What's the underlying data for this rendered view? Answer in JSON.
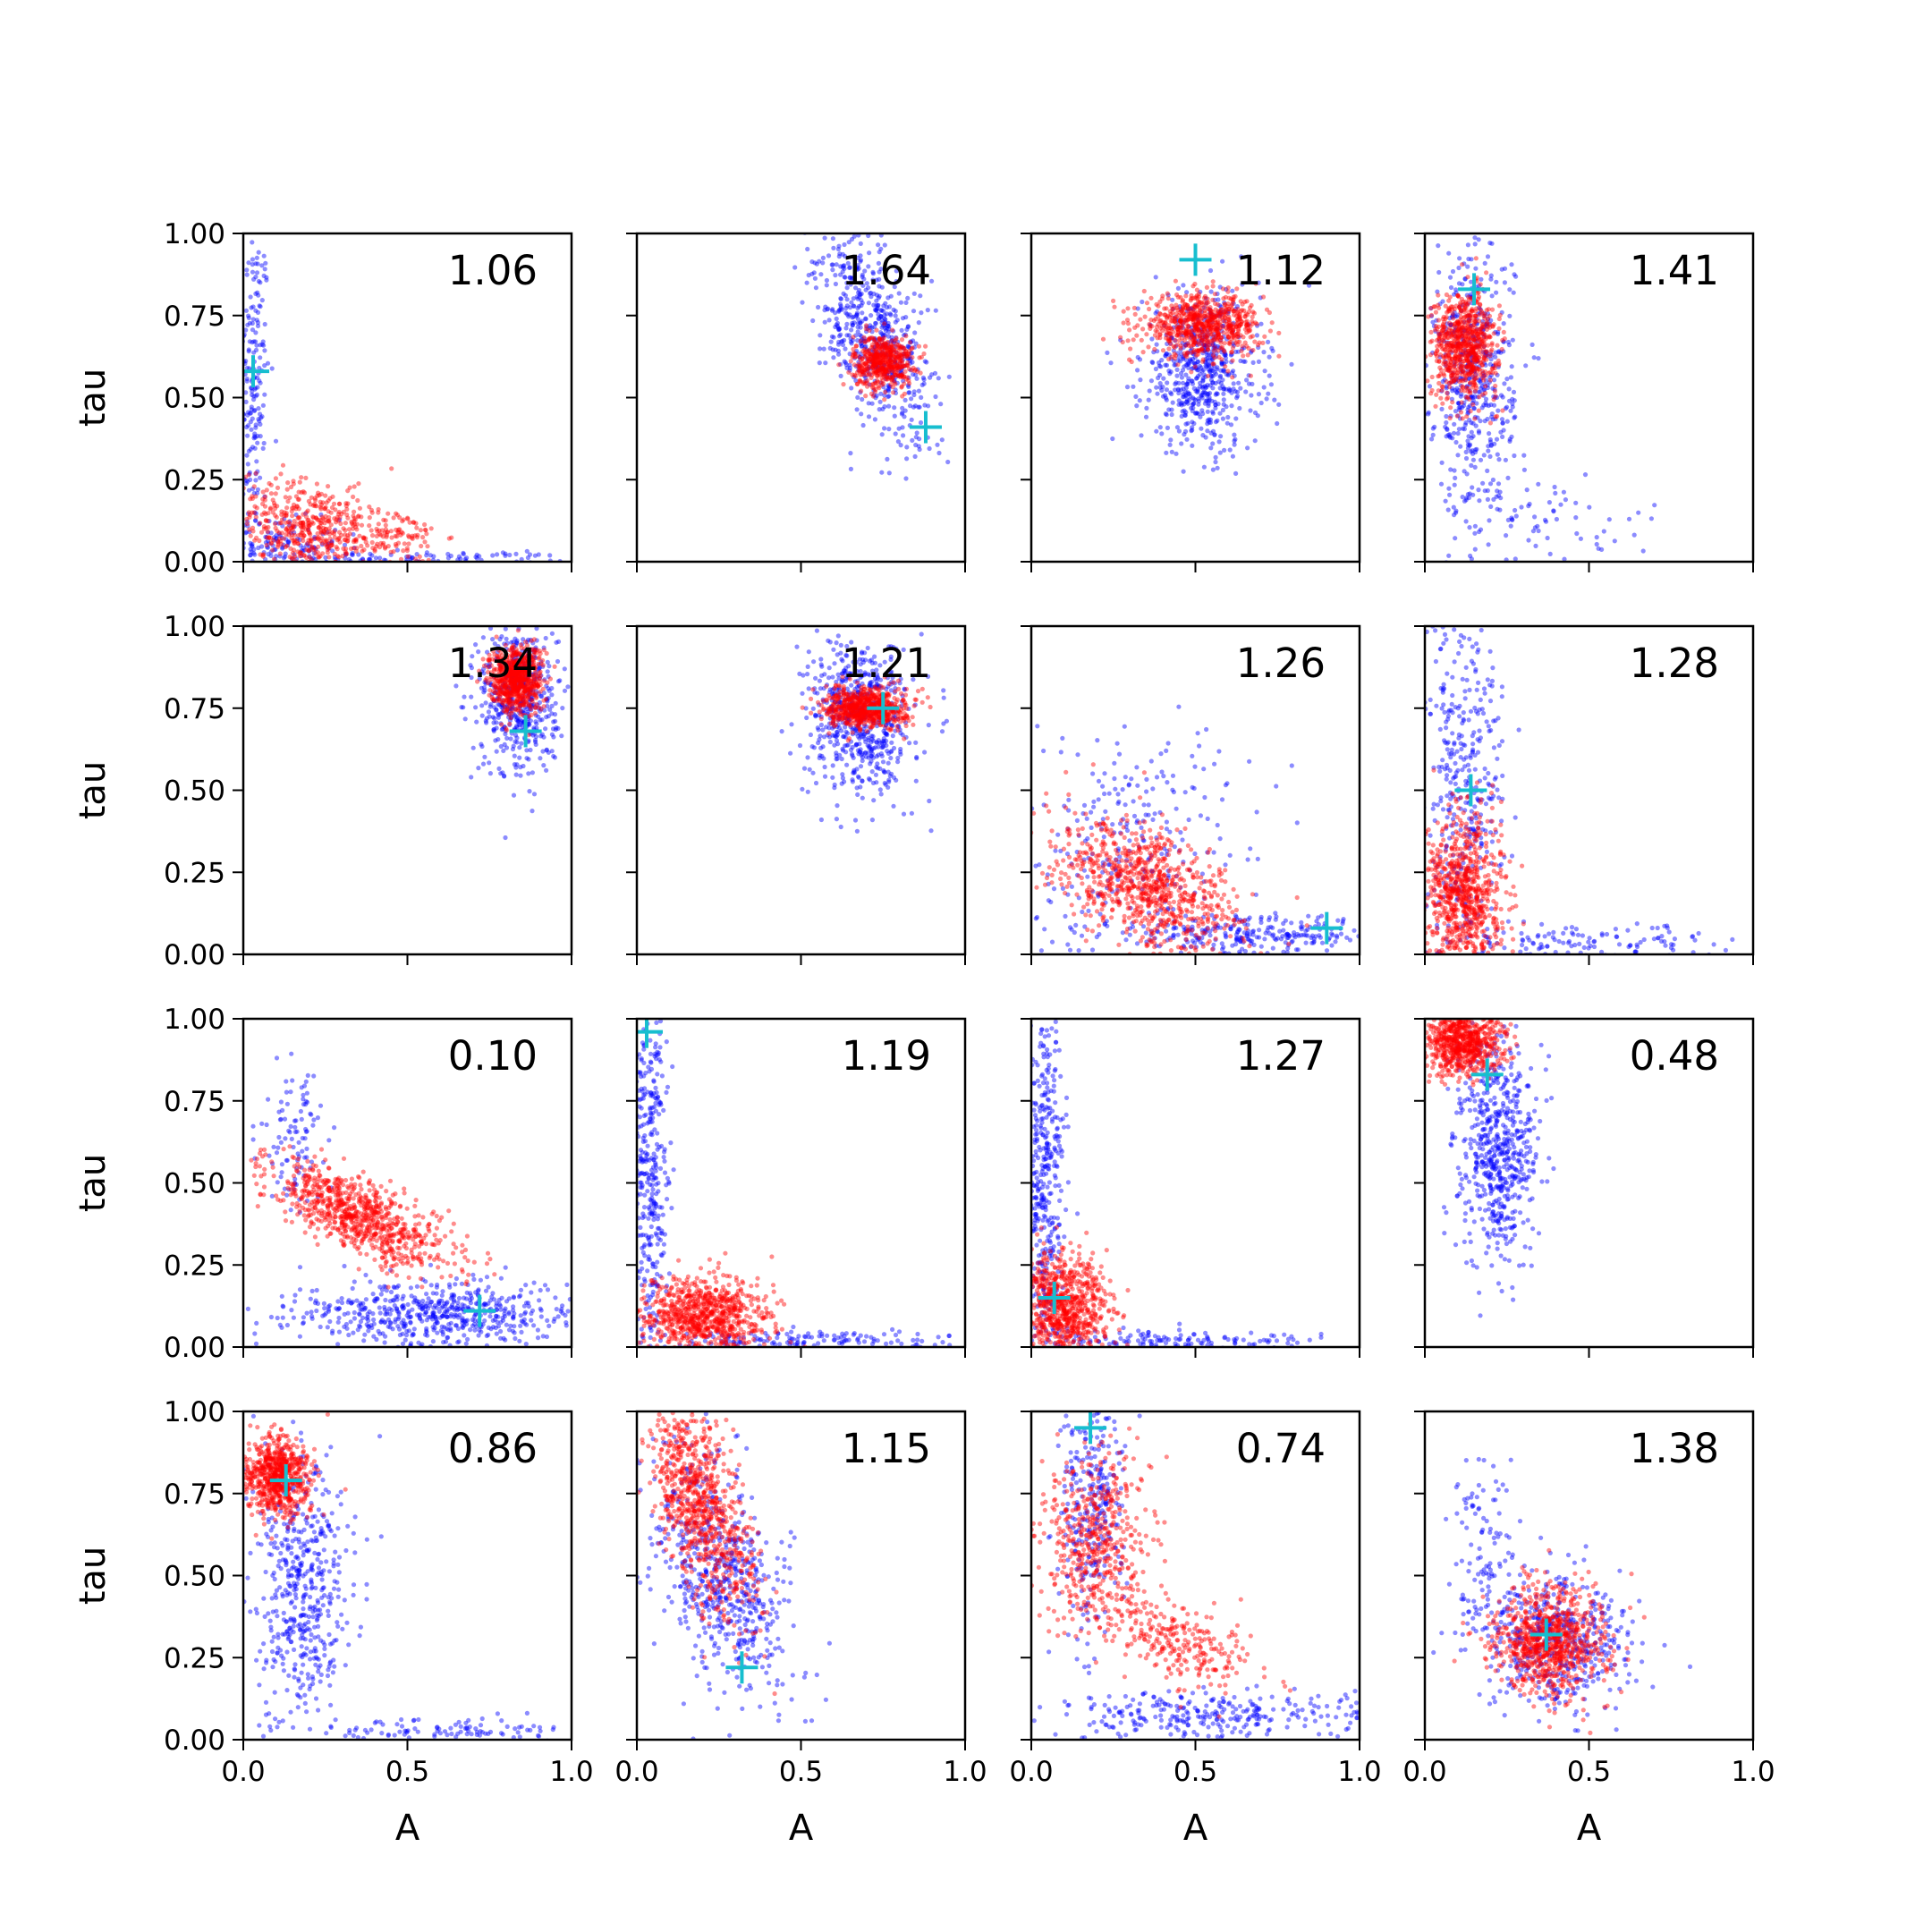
{
  "chart_data": {
    "type": "scatter",
    "layout": {
      "rows": 4,
      "cols": 4,
      "sharex": true,
      "sharey": true
    },
    "xlabel": "A",
    "ylabel": "tau",
    "xlim": [
      0,
      1
    ],
    "ylim": [
      0,
      1
    ],
    "xticks": [
      "0.0",
      "0.5",
      "1.0"
    ],
    "yticks": [
      "0.00",
      "0.25",
      "0.50",
      "0.75",
      "1.00"
    ],
    "grid": false,
    "colors": {
      "series_a": "#0000ff",
      "series_b": "#ff0000",
      "marker": "#17becf"
    },
    "panels": [
      {
        "label": "1.06",
        "true_point": [
          0.03,
          0.58
        ],
        "series_a": [
          {
            "cx": 0.03,
            "cy": 0.55,
            "sx": 0.025,
            "sy": 0.25,
            "n": 200,
            "rot": 0
          },
          {
            "cx": 0.1,
            "cy": 0.05,
            "sx": 0.1,
            "sy": 0.04,
            "n": 150,
            "rot": 0
          },
          {
            "cx": 0.5,
            "cy": 0.01,
            "sx": 0.25,
            "sy": 0.01,
            "n": 100,
            "rot": 0
          }
        ],
        "series_b": [
          {
            "cx": 0.2,
            "cy": 0.1,
            "sx": 0.12,
            "sy": 0.07,
            "n": 500,
            "rot": -0.25
          },
          {
            "cx": 0.45,
            "cy": 0.08,
            "sx": 0.08,
            "sy": 0.04,
            "n": 100,
            "rot": 0
          }
        ]
      },
      {
        "label": "1.64",
        "true_point": [
          0.88,
          0.41
        ],
        "series_a": [
          {
            "cx": 0.72,
            "cy": 0.7,
            "sx": 0.07,
            "sy": 0.17,
            "n": 600,
            "rot": 0.4
          }
        ],
        "series_b": [
          {
            "cx": 0.75,
            "cy": 0.61,
            "sx": 0.045,
            "sy": 0.04,
            "n": 500,
            "rot": 0
          }
        ]
      },
      {
        "label": "1.12",
        "true_point": [
          0.5,
          0.92
        ],
        "series_a": [
          {
            "cx": 0.52,
            "cy": 0.58,
            "sx": 0.09,
            "sy": 0.12,
            "n": 600,
            "rot": 0
          }
        ],
        "series_b": [
          {
            "cx": 0.52,
            "cy": 0.72,
            "sx": 0.09,
            "sy": 0.045,
            "n": 700,
            "rot": 0
          }
        ]
      },
      {
        "label": "1.41",
        "true_point": [
          0.15,
          0.83
        ],
        "series_a": [
          {
            "cx": 0.15,
            "cy": 0.55,
            "sx": 0.06,
            "sy": 0.2,
            "n": 500,
            "rot": 0
          },
          {
            "cx": 0.35,
            "cy": 0.12,
            "sx": 0.18,
            "sy": 0.07,
            "n": 80,
            "rot": 0
          }
        ],
        "series_b": [
          {
            "cx": 0.12,
            "cy": 0.66,
            "sx": 0.05,
            "sy": 0.08,
            "n": 700,
            "rot": 0
          }
        ]
      },
      {
        "label": "1.34",
        "true_point": [
          0.86,
          0.68
        ],
        "series_a": [
          {
            "cx": 0.84,
            "cy": 0.78,
            "sx": 0.06,
            "sy": 0.12,
            "n": 500,
            "rot": 0
          }
        ],
        "series_b": [
          {
            "cx": 0.83,
            "cy": 0.84,
            "sx": 0.04,
            "sy": 0.05,
            "n": 700,
            "rot": 0
          }
        ]
      },
      {
        "label": "1.21",
        "true_point": [
          0.75,
          0.75
        ],
        "series_a": [
          {
            "cx": 0.68,
            "cy": 0.72,
            "sx": 0.08,
            "sy": 0.12,
            "n": 600,
            "rot": 0
          }
        ],
        "series_b": [
          {
            "cx": 0.7,
            "cy": 0.75,
            "sx": 0.06,
            "sy": 0.03,
            "n": 700,
            "rot": 0
          }
        ]
      },
      {
        "label": "1.26",
        "true_point": [
          0.9,
          0.08
        ],
        "series_a": [
          {
            "cx": 0.3,
            "cy": 0.3,
            "sx": 0.18,
            "sy": 0.2,
            "n": 300,
            "rot": -0.8
          },
          {
            "cx": 0.7,
            "cy": 0.06,
            "sx": 0.18,
            "sy": 0.03,
            "n": 250,
            "rot": 0
          }
        ],
        "series_b": [
          {
            "cx": 0.35,
            "cy": 0.2,
            "sx": 0.15,
            "sy": 0.08,
            "n": 800,
            "rot": -0.5
          }
        ]
      },
      {
        "label": "1.28",
        "true_point": [
          0.14,
          0.5
        ],
        "series_a": [
          {
            "cx": 0.12,
            "cy": 0.55,
            "sx": 0.06,
            "sy": 0.3,
            "n": 400,
            "rot": 0
          },
          {
            "cx": 0.45,
            "cy": 0.03,
            "sx": 0.25,
            "sy": 0.03,
            "n": 150,
            "rot": 0
          }
        ],
        "series_b": [
          {
            "cx": 0.12,
            "cy": 0.18,
            "sx": 0.06,
            "sy": 0.13,
            "n": 800,
            "rot": 0
          }
        ]
      },
      {
        "label": "0.10",
        "true_point": [
          0.72,
          0.11
        ],
        "series_a": [
          {
            "cx": 0.6,
            "cy": 0.1,
            "sx": 0.22,
            "sy": 0.05,
            "n": 600,
            "rot": 0
          },
          {
            "cx": 0.15,
            "cy": 0.65,
            "sx": 0.05,
            "sy": 0.12,
            "n": 100,
            "rot": 0
          }
        ],
        "series_b": [
          {
            "cx": 0.35,
            "cy": 0.4,
            "sx": 0.15,
            "sy": 0.05,
            "n": 800,
            "rot": -0.45
          }
        ]
      },
      {
        "label": "1.19",
        "true_point": [
          0.03,
          0.96
        ],
        "series_a": [
          {
            "cx": 0.04,
            "cy": 0.55,
            "sx": 0.03,
            "sy": 0.3,
            "n": 400,
            "rot": 0
          },
          {
            "cx": 0.5,
            "cy": 0.02,
            "sx": 0.25,
            "sy": 0.015,
            "n": 150,
            "rot": 0
          }
        ],
        "series_b": [
          {
            "cx": 0.2,
            "cy": 0.09,
            "sx": 0.1,
            "sy": 0.06,
            "n": 800,
            "rot": 0
          }
        ]
      },
      {
        "label": "1.27",
        "true_point": [
          0.07,
          0.15
        ],
        "series_a": [
          {
            "cx": 0.04,
            "cy": 0.5,
            "sx": 0.03,
            "sy": 0.3,
            "n": 400,
            "rot": 0
          },
          {
            "cx": 0.45,
            "cy": 0.02,
            "sx": 0.25,
            "sy": 0.015,
            "n": 150,
            "rot": 0
          }
        ],
        "series_b": [
          {
            "cx": 0.1,
            "cy": 0.12,
            "sx": 0.07,
            "sy": 0.08,
            "n": 800,
            "rot": 0
          }
        ]
      },
      {
        "label": "0.48",
        "true_point": [
          0.19,
          0.83
        ],
        "series_a": [
          {
            "cx": 0.22,
            "cy": 0.6,
            "sx": 0.06,
            "sy": 0.17,
            "n": 600,
            "rot": 0
          }
        ],
        "series_b": [
          {
            "cx": 0.12,
            "cy": 0.93,
            "sx": 0.06,
            "sy": 0.05,
            "n": 700,
            "rot": 0
          }
        ]
      },
      {
        "label": "0.86",
        "true_point": [
          0.13,
          0.79
        ],
        "series_a": [
          {
            "cx": 0.18,
            "cy": 0.45,
            "sx": 0.07,
            "sy": 0.2,
            "n": 500,
            "rot": 0
          },
          {
            "cx": 0.6,
            "cy": 0.03,
            "sx": 0.2,
            "sy": 0.02,
            "n": 100,
            "rot": 0
          }
        ],
        "series_b": [
          {
            "cx": 0.1,
            "cy": 0.8,
            "sx": 0.05,
            "sy": 0.06,
            "n": 700,
            "rot": 0
          }
        ]
      },
      {
        "label": "1.15",
        "true_point": [
          0.32,
          0.22
        ],
        "series_a": [
          {
            "cx": 0.25,
            "cy": 0.5,
            "sx": 0.09,
            "sy": 0.2,
            "n": 600,
            "rot": 0.35
          }
        ],
        "series_b": [
          {
            "cx": 0.2,
            "cy": 0.7,
            "sx": 0.06,
            "sy": 0.17,
            "n": 800,
            "rot": 0.3
          }
        ]
      },
      {
        "label": "0.74",
        "true_point": [
          0.18,
          0.95
        ],
        "series_a": [
          {
            "cx": 0.18,
            "cy": 0.7,
            "sx": 0.05,
            "sy": 0.2,
            "n": 300,
            "rot": 0
          },
          {
            "cx": 0.55,
            "cy": 0.07,
            "sx": 0.25,
            "sy": 0.04,
            "n": 300,
            "rot": 0
          }
        ],
        "series_b": [
          {
            "cx": 0.2,
            "cy": 0.6,
            "sx": 0.08,
            "sy": 0.14,
            "n": 500,
            "rot": 0
          },
          {
            "cx": 0.45,
            "cy": 0.3,
            "sx": 0.12,
            "sy": 0.06,
            "n": 250,
            "rot": -0.4
          }
        ]
      },
      {
        "label": "1.38",
        "true_point": [
          0.37,
          0.32
        ],
        "series_a": [
          {
            "cx": 0.4,
            "cy": 0.3,
            "sx": 0.11,
            "sy": 0.1,
            "n": 500,
            "rot": -0.4
          },
          {
            "cx": 0.18,
            "cy": 0.6,
            "sx": 0.05,
            "sy": 0.15,
            "n": 100,
            "rot": 0
          }
        ],
        "series_b": [
          {
            "cx": 0.38,
            "cy": 0.3,
            "sx": 0.09,
            "sy": 0.08,
            "n": 800,
            "rot": -0.3
          }
        ]
      }
    ]
  }
}
